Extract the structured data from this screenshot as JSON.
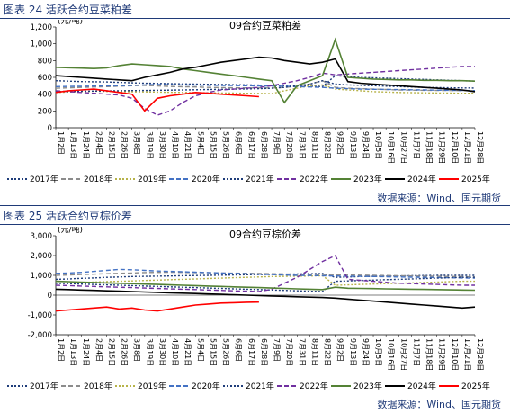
{
  "fig24": {
    "caption": "图表 24 活跃合约豆菜粕差",
    "source": "数据来源：Wind、国元期货"
  },
  "fig25": {
    "caption": "图表 25 活跃合约豆棕价差",
    "source": "数据来源：Wind、国元期货"
  },
  "chart_data": [
    {
      "type": "line",
      "title": "09合约豆菜粕差",
      "ylabel": "(元/吨)",
      "ylim": [
        0,
        1200
      ],
      "yticks": [
        0,
        200,
        400,
        600,
        800,
        1000,
        1200
      ],
      "ytick_labels": [
        "0",
        "200",
        "400",
        "600",
        "800",
        "1,000",
        "1,200"
      ],
      "categories": [
        "1月2日",
        "1月13日",
        "1月24日",
        "2月4日",
        "2月15日",
        "2月26日",
        "3月8日",
        "3月19日",
        "3月30日",
        "4月10日",
        "4月21日",
        "5月4日",
        "5月15日",
        "5月26日",
        "6月6日",
        "6月17日",
        "6月28日",
        "7月9日",
        "7月20日",
        "7月31日",
        "8月11日",
        "8月22日",
        "9月2日",
        "9月13日",
        "9月24日",
        "10月5日",
        "10月16日",
        "10月27日",
        "11月7日",
        "11月18日",
        "11月29日",
        "12月10日",
        "12月21日",
        "12月28日"
      ],
      "grid": false,
      "legend_position": "bottom",
      "series": [
        {
          "name": "2017年",
          "color": "#1f3d7a",
          "style": "dotted",
          "values": [
            560,
            555,
            550,
            548,
            545,
            540,
            535,
            530,
            528,
            525,
            522,
            520,
            518,
            515,
            512,
            510,
            508,
            505,
            500,
            498,
            495,
            490,
            620,
            610,
            600,
            595,
            590,
            585,
            580,
            575,
            570,
            565,
            560,
            555
          ]
        },
        {
          "name": "2018年",
          "color": "#8c8c8c",
          "style": "dashed",
          "values": [
            470,
            475,
            480,
            485,
            490,
            495,
            500,
            505,
            498,
            492,
            488,
            485,
            480,
            478,
            476,
            475,
            474,
            472,
            480,
            495,
            520,
            560,
            480,
            470,
            465,
            460,
            455,
            450,
            448,
            446,
            445,
            444,
            442,
            440
          ]
        },
        {
          "name": "2019年",
          "color": "#b7b34a",
          "style": "dotted",
          "values": [
            420,
            425,
            430,
            435,
            432,
            430,
            428,
            426,
            424,
            422,
            420,
            418,
            416,
            414,
            412,
            410,
            408,
            406,
            440,
            470,
            500,
            510,
            460,
            450,
            440,
            430,
            425,
            420,
            418,
            416,
            414,
            412,
            410,
            410
          ]
        },
        {
          "name": "2020年",
          "color": "#4472c4",
          "style": "dashed",
          "values": [
            490,
            492,
            494,
            496,
            498,
            500,
            505,
            510,
            515,
            512,
            510,
            508,
            506,
            504,
            502,
            500,
            498,
            496,
            494,
            490,
            485,
            480,
            470,
            465,
            460,
            458,
            456,
            454,
            452,
            450,
            448,
            446,
            444,
            442
          ]
        },
        {
          "name": "2021年",
          "color": "#1f3d7a",
          "style": "dotted",
          "values": [
            430,
            432,
            434,
            436,
            438,
            440,
            442,
            444,
            446,
            448,
            450,
            452,
            455,
            458,
            460,
            462,
            465,
            470,
            480,
            500,
            520,
            560,
            520,
            510,
            505,
            500,
            495,
            490,
            485,
            480,
            478,
            476,
            474,
            472
          ]
        },
        {
          "name": "2022年",
          "color": "#7030a0",
          "style": "dashed",
          "values": [
            440,
            430,
            420,
            410,
            400,
            390,
            350,
            230,
            150,
            200,
            300,
            380,
            420,
            450,
            460,
            470,
            480,
            500,
            530,
            560,
            600,
            650,
            630,
            640,
            650,
            660,
            670,
            680,
            690,
            700,
            710,
            720,
            730,
            730
          ]
        },
        {
          "name": "2023年",
          "color": "#548235",
          "style": "solid",
          "values": [
            720,
            715,
            710,
            705,
            712,
            740,
            760,
            750,
            740,
            730,
            700,
            680,
            660,
            640,
            620,
            600,
            580,
            560,
            300,
            500,
            560,
            620,
            1050,
            600,
            590,
            580,
            575,
            570,
            570,
            565,
            565,
            560,
            560,
            555
          ]
        },
        {
          "name": "2024年",
          "color": "#000000",
          "style": "solid",
          "values": [
            620,
            610,
            600,
            590,
            580,
            570,
            560,
            600,
            630,
            660,
            700,
            720,
            750,
            780,
            800,
            820,
            840,
            830,
            800,
            780,
            760,
            780,
            820,
            550,
            530,
            520,
            510,
            500,
            490,
            480,
            470,
            460,
            450,
            430
          ]
        },
        {
          "name": "2025年",
          "color": "#ff0000",
          "style": "solid",
          "values": [
            420,
            440,
            450,
            460,
            440,
            420,
            400,
            200,
            350,
            380,
            400,
            420,
            410,
            400,
            390,
            380,
            370,
            null,
            null,
            null,
            null,
            null,
            null,
            null,
            null,
            null,
            null,
            null,
            null,
            null,
            null,
            null,
            null,
            null
          ]
        }
      ]
    },
    {
      "type": "line",
      "title": "09合约豆棕价差",
      "ylabel": "(元/吨)",
      "ylim": [
        -2000,
        3000
      ],
      "yticks": [
        -2000,
        -1000,
        0,
        1000,
        2000,
        3000
      ],
      "ytick_labels": [
        "-2,000",
        "-1,000",
        "0",
        "1,000",
        "2,000",
        "3,000"
      ],
      "categories": [
        "1月2日",
        "1月13日",
        "1月24日",
        "2月4日",
        "2月15日",
        "2月26日",
        "3月8日",
        "3月19日",
        "3月30日",
        "4月10日",
        "4月21日",
        "5月4日",
        "5月15日",
        "5月26日",
        "6月6日",
        "6月17日",
        "6月28日",
        "7月9日",
        "7月20日",
        "7月31日",
        "8月11日",
        "8月22日",
        "9月2日",
        "9月13日",
        "9月24日",
        "10月5日",
        "10月16日",
        "10月27日",
        "11月7日",
        "11月18日",
        "11月29日",
        "12月10日",
        "12月21日",
        "12月28日"
      ],
      "grid": false,
      "legend_position": "bottom",
      "series": [
        {
          "name": "2017年",
          "color": "#1f3d7a",
          "style": "dotted",
          "values": [
            800,
            820,
            850,
            870,
            900,
            920,
            940,
            950,
            960,
            970,
            980,
            990,
            1000,
            1010,
            1020,
            1030,
            1040,
            1050,
            1060,
            1070,
            1080,
            1090,
            900,
            920,
            940,
            950,
            960,
            970,
            980,
            990,
            1000,
            1000,
            1000,
            1000
          ]
        },
        {
          "name": "2018年",
          "color": "#8c8c8c",
          "style": "dashed",
          "values": [
            1000,
            1020,
            1040,
            1060,
            1080,
            1100,
            1120,
            1140,
            1150,
            1160,
            1150,
            1140,
            1130,
            1120,
            1110,
            1100,
            1090,
            1080,
            1070,
            1060,
            1050,
            1040,
            1030,
            1020,
            1010,
            1000,
            990,
            980,
            970,
            960,
            950,
            940,
            930,
            920
          ]
        },
        {
          "name": "2019年",
          "color": "#b7b34a",
          "style": "dotted",
          "values": [
            600,
            620,
            640,
            660,
            680,
            700,
            720,
            740,
            760,
            780,
            800,
            820,
            840,
            860,
            880,
            900,
            920,
            940,
            950,
            960,
            970,
            980,
            500,
            520,
            540,
            560,
            580,
            600,
            620,
            640,
            660,
            680,
            700,
            700
          ]
        },
        {
          "name": "2020年",
          "color": "#4472c4",
          "style": "dashed",
          "values": [
            1100,
            1120,
            1150,
            1200,
            1250,
            1300,
            1280,
            1250,
            1220,
            1200,
            1180,
            1160,
            1140,
            1120,
            1100,
            1080,
            1060,
            1040,
            1020,
            1000,
            990,
            980,
            970,
            960,
            950,
            940,
            930,
            920,
            910,
            900,
            890,
            880,
            870,
            860
          ]
        },
        {
          "name": "2021年",
          "color": "#1f3d7a",
          "style": "dotted",
          "values": [
            600,
            580,
            560,
            540,
            520,
            500,
            480,
            460,
            440,
            420,
            400,
            380,
            360,
            340,
            320,
            300,
            280,
            260,
            240,
            220,
            200,
            180,
            700,
            720,
            740,
            760,
            780,
            800,
            820,
            840,
            860,
            880,
            900,
            900
          ]
        },
        {
          "name": "2022年",
          "color": "#7030a0",
          "style": "dashed",
          "values": [
            500,
            480,
            460,
            440,
            420,
            400,
            380,
            360,
            340,
            320,
            300,
            280,
            260,
            240,
            220,
            200,
            180,
            300,
            600,
            900,
            1300,
            1700,
            2000,
            800,
            750,
            700,
            650,
            600,
            580,
            560,
            540,
            520,
            500,
            500
          ]
        },
        {
          "name": "2023年",
          "color": "#548235",
          "style": "solid",
          "values": [
            700,
            680,
            660,
            640,
            620,
            600,
            580,
            560,
            540,
            520,
            500,
            480,
            460,
            440,
            420,
            400,
            380,
            360,
            340,
            320,
            300,
            280,
            400,
            350,
            340,
            330,
            320,
            310,
            300,
            290,
            280,
            270,
            260,
            250
          ]
        },
        {
          "name": "2024年",
          "color": "#000000",
          "style": "solid",
          "values": [
            300,
            280,
            260,
            240,
            220,
            200,
            180,
            160,
            140,
            120,
            100,
            80,
            60,
            40,
            20,
            0,
            -20,
            -40,
            -60,
            -80,
            -100,
            -120,
            -150,
            -200,
            -250,
            -300,
            -350,
            -400,
            -450,
            -500,
            -550,
            -600,
            -650,
            -600
          ]
        },
        {
          "name": "2025年",
          "color": "#ff0000",
          "style": "solid",
          "values": [
            -800,
            -750,
            -700,
            -650,
            -600,
            -700,
            -650,
            -750,
            -800,
            -700,
            -600,
            -500,
            -450,
            -400,
            -380,
            -360,
            -350,
            null,
            null,
            null,
            null,
            null,
            null,
            null,
            null,
            null,
            null,
            null,
            null,
            null,
            null,
            null,
            null,
            null
          ]
        }
      ]
    }
  ]
}
